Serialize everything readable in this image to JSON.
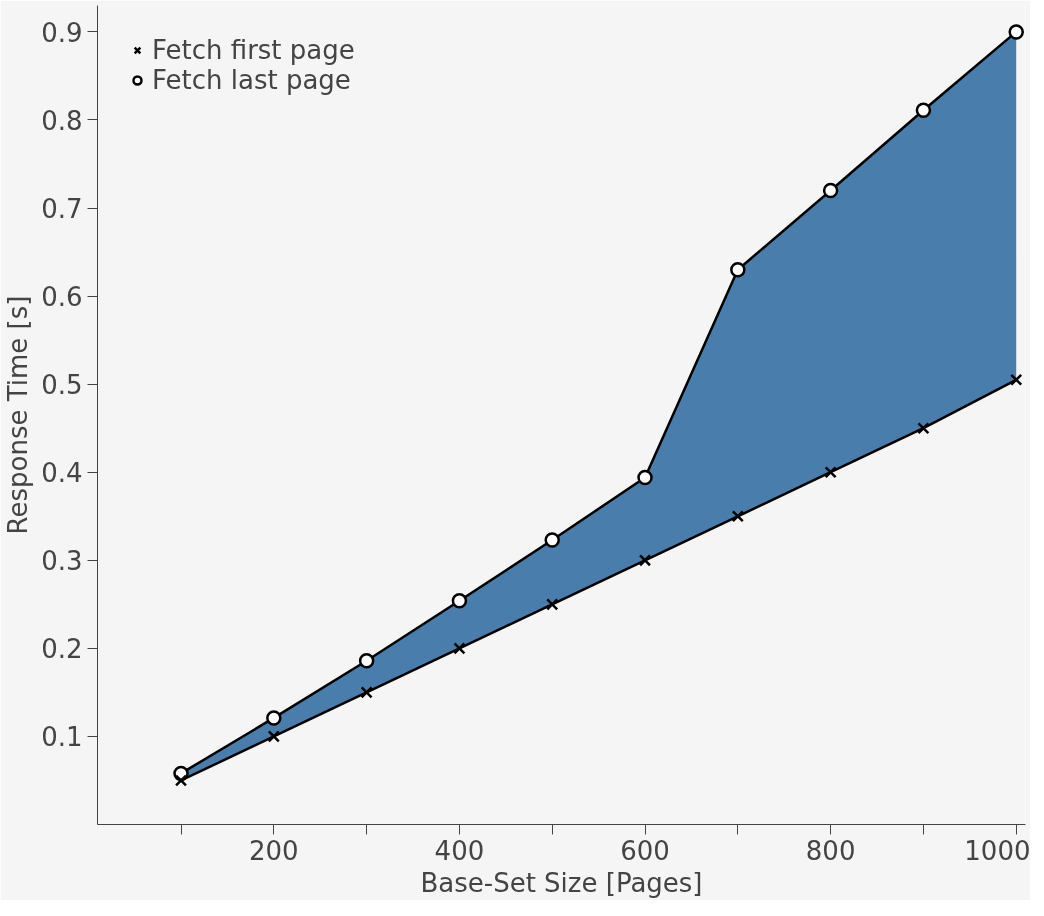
{
  "chart_data": {
    "type": "line",
    "xlabel": "Base-Set Size [Pages]",
    "ylabel": "Response Time [s]",
    "x": [
      100,
      200,
      300,
      400,
      500,
      600,
      700,
      800,
      900,
      1000
    ],
    "series": [
      {
        "name": "Fetch first page",
        "color": "#000000",
        "marker": "cross",
        "values": [
          0.05,
          0.1,
          0.15,
          0.2,
          0.25,
          0.3,
          0.35,
          0.4,
          0.45,
          0.505
        ]
      },
      {
        "name": "Fetch last page",
        "color": "#000000",
        "marker": "circle",
        "lower": [
          0.05,
          0.1,
          0.15,
          0.2,
          0.25,
          0.3,
          0.35,
          0.4,
          0.45,
          0.505
        ],
        "upper": [
          0.058,
          0.121,
          0.186,
          0.254,
          0.323,
          0.394,
          0.63,
          0.72,
          0.811,
          0.9
        ],
        "values": [
          0.058,
          0.121,
          0.186,
          0.254,
          0.323,
          0.394,
          0.63,
          0.72,
          0.811,
          0.9
        ]
      }
    ],
    "xlim": [
      10,
      1010
    ],
    "ylim": [
      0,
      0.93
    ],
    "xticks": [
      {
        "value": 100,
        "label": null
      },
      200,
      {
        "value": 300,
        "label": null
      },
      400,
      {
        "value": 500,
        "label": null
      },
      600,
      {
        "value": 700,
        "label": null
      },
      800,
      {
        "value": 900,
        "label": null
      },
      1000
    ],
    "yticks": [
      0.1,
      0.2,
      0.3,
      0.4,
      0.5,
      0.6,
      0.7,
      0.8,
      0.9
    ],
    "grid": false,
    "legend": "top left",
    "line_style": "solid"
  }
}
